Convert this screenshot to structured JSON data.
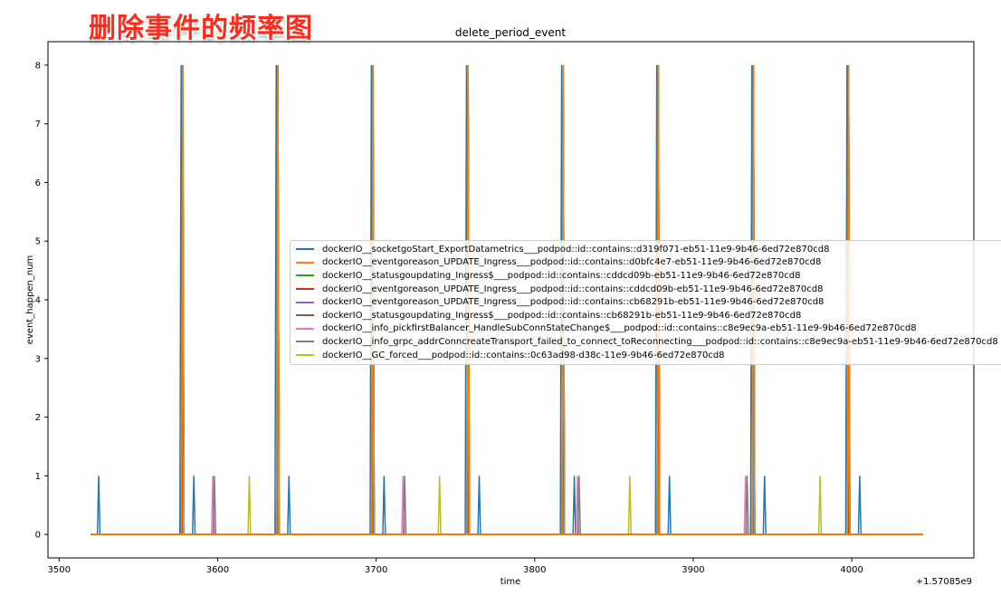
{
  "overlay": {
    "title_cn": "删除事件的频率图"
  },
  "chart_data": {
    "type": "line",
    "title": "delete_period_event",
    "xlabel": "time",
    "ylabel": "event_happen_num",
    "x_offset_label": "+1.57085e9",
    "xlim": [
      3493,
      4077
    ],
    "ylim": [
      -0.4,
      8.4
    ],
    "x_ticks": [
      3500,
      3600,
      3700,
      3800,
      3900,
      4000
    ],
    "x_tick_labels": [
      "3500",
      "3600",
      "3700",
      "3800",
      "3900",
      "4000"
    ],
    "y_ticks": [
      0,
      1,
      2,
      3,
      4,
      5,
      6,
      7,
      8
    ],
    "y_tick_labels": [
      "0",
      "1",
      "2",
      "3",
      "4",
      "5",
      "6",
      "7",
      "8"
    ],
    "x_range": [
      3520,
      4045
    ],
    "legend_position": "center-right",
    "grid": false,
    "series": [
      {
        "name": "dockerIO__socketgoStart_ExportDatametrics___podpod::id::contains::d319f071-eb51-11e9-9b46-6ed72e870cd8",
        "color": "#1f77b4",
        "spikes": [
          [
            3525,
            1
          ],
          [
            3577,
            8
          ],
          [
            3585,
            1
          ],
          [
            3637,
            8
          ],
          [
            3645,
            1
          ],
          [
            3697,
            8
          ],
          [
            3705,
            1
          ],
          [
            3757,
            8
          ],
          [
            3765,
            1
          ],
          [
            3817,
            8
          ],
          [
            3825,
            1
          ],
          [
            3877,
            8
          ],
          [
            3885,
            1
          ],
          [
            3937,
            8
          ],
          [
            3945,
            1
          ],
          [
            3997,
            8
          ],
          [
            4005,
            1
          ]
        ]
      },
      {
        "name": "dockerIO__eventgoreason_UPDATE_Ingress___podpod::id::contains::d0bfc4e7-eb51-11e9-9b46-6ed72e870cd8",
        "color": "#ff7f0e",
        "spikes": [
          [
            3578,
            8
          ],
          [
            3638,
            8
          ],
          [
            3698,
            8
          ],
          [
            3758,
            8
          ],
          [
            3818,
            8
          ],
          [
            3878,
            8
          ],
          [
            3938,
            8
          ],
          [
            3998,
            8
          ]
        ]
      },
      {
        "name": "dockerIO__statusgoupdating_Ingress$___podpod::id::contains::cddcd09b-eb51-11e9-9b46-6ed72e870cd8",
        "color": "#2ca02c",
        "spikes": [
          [
            3578,
            8
          ],
          [
            3638,
            8
          ],
          [
            3698,
            8
          ],
          [
            3758,
            8
          ],
          [
            3818,
            8
          ],
          [
            3878,
            8
          ],
          [
            3938,
            8
          ],
          [
            3998,
            8
          ]
        ]
      },
      {
        "name": "dockerIO__eventgoreason_UPDATE_Ingress___podpod::id::contains::cddcd09b-eb51-11e9-9b46-6ed72e870cd8",
        "color": "#d62728",
        "spikes": [
          [
            3578,
            8
          ],
          [
            3638,
            8
          ],
          [
            3698,
            8
          ],
          [
            3758,
            8
          ],
          [
            3818,
            8
          ],
          [
            3878,
            8
          ],
          [
            3938,
            8
          ],
          [
            3998,
            8
          ]
        ]
      },
      {
        "name": "dockerIO__eventgoreason_UPDATE_Ingress___podpod::id::contains::cb68291b-eb51-11e9-9b46-6ed72e870cd8",
        "color": "#9467bd",
        "spikes": [
          [
            3578,
            8
          ],
          [
            3638,
            8
          ],
          [
            3698,
            8
          ],
          [
            3758,
            8
          ],
          [
            3818,
            8
          ],
          [
            3878,
            8
          ],
          [
            3938,
            8
          ],
          [
            3998,
            8
          ]
        ]
      },
      {
        "name": "dockerIO__statusgoupdating_Ingress$___podpod::id::contains::cb68291b-eb51-11e9-9b46-6ed72e870cd8",
        "color": "#8c564b",
        "spikes": [
          [
            3578,
            8
          ],
          [
            3638,
            8
          ],
          [
            3698,
            8
          ],
          [
            3758,
            8
          ],
          [
            3818,
            8
          ],
          [
            3878,
            8
          ],
          [
            3938,
            8
          ],
          [
            3998,
            8
          ]
        ]
      },
      {
        "name": "dockerIO__info_pickfirstBalancer_HandleSubConnStateChange$___podpod::id::contains::c8e9ec9a-eb51-11e9-9b46-6ed72e870cd8",
        "color": "#e377c2",
        "spikes": [
          [
            3597,
            1
          ],
          [
            3717,
            1
          ],
          [
            3827,
            1
          ],
          [
            3933,
            1
          ]
        ]
      },
      {
        "name": "dockerIO__info_grpc_addrConncreateTransport_failed_to_connect_toReconnecting___podpod::id::contains::c8e9ec9a-eb51-11e9-9b46-6ed72e870cd8",
        "color": "#7f7f7f",
        "spikes": [
          [
            3598,
            1
          ],
          [
            3718,
            1
          ],
          [
            3828,
            1
          ],
          [
            3934,
            1
          ]
        ]
      },
      {
        "name": "dockerIO__GC_forced___podpod::id::contains::0c63ad98-d38c-11e9-9b46-6ed72e870cd8",
        "color": "#bcbd22",
        "spikes": [
          [
            3620,
            1
          ],
          [
            3740,
            1
          ],
          [
            3860,
            1
          ],
          [
            3980,
            1
          ]
        ]
      }
    ]
  }
}
